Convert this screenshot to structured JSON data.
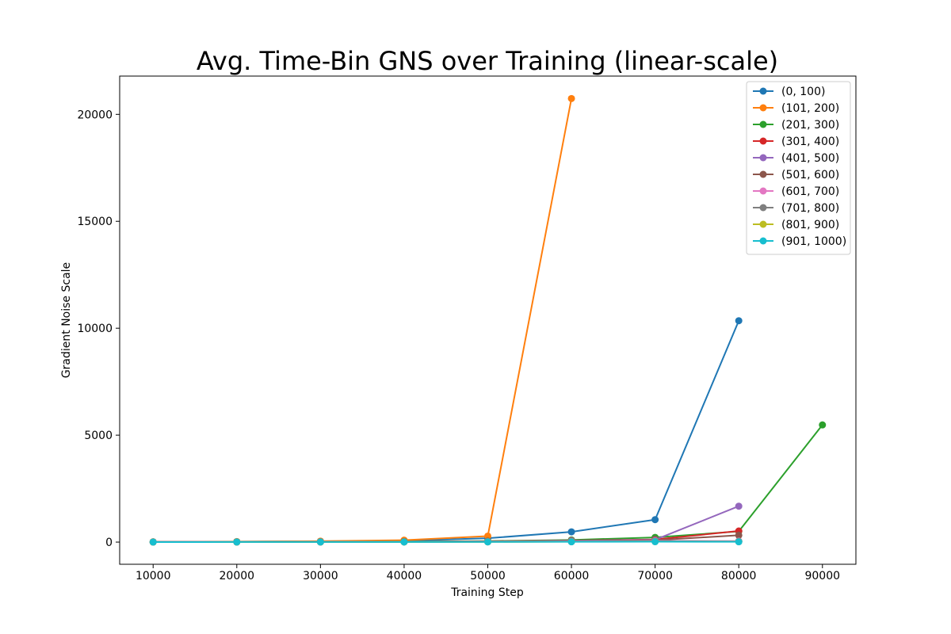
{
  "chart_data": {
    "type": "line",
    "title": "Avg. Time-Bin GNS over Training (linear-scale)",
    "xlabel": "Training Step",
    "ylabel": "Gradient Noise Scale",
    "xlim": [
      6000,
      94000
    ],
    "ylim": [
      -1036,
      21790
    ],
    "xticks": [
      10000,
      20000,
      30000,
      40000,
      50000,
      60000,
      70000,
      80000,
      90000
    ],
    "yticks": [
      0,
      5000,
      10000,
      15000,
      20000
    ],
    "grid": false,
    "legend_position": "top-right",
    "x": [
      10000,
      20000,
      30000,
      40000,
      50000,
      60000,
      70000,
      80000,
      90000
    ],
    "series": [
      {
        "name": "(0, 100)",
        "color": "#1f77b4",
        "values": [
          10,
          20,
          40,
          60,
          180,
          480,
          1050,
          10350,
          null
        ]
      },
      {
        "name": "(101, 200)",
        "color": "#ff7f0e",
        "values": [
          15,
          25,
          45,
          90,
          280,
          20740,
          null,
          null,
          null
        ]
      },
      {
        "name": "(201, 300)",
        "color": "#2ca02c",
        "values": [
          5,
          8,
          15,
          25,
          50,
          100,
          220,
          500,
          5480
        ]
      },
      {
        "name": "(301, 400)",
        "color": "#d62728",
        "values": [
          5,
          7,
          12,
          20,
          40,
          70,
          120,
          520,
          null
        ]
      },
      {
        "name": "(401, 500)",
        "color": "#9467bd",
        "values": [
          5,
          6,
          10,
          15,
          30,
          60,
          110,
          1680,
          null
        ]
      },
      {
        "name": "(501, 600)",
        "color": "#8c564b",
        "values": [
          4,
          5,
          8,
          12,
          25,
          45,
          90,
          320,
          null
        ]
      },
      {
        "name": "(601, 700)",
        "color": "#e377c2",
        "values": [
          4,
          5,
          7,
          10,
          20,
          35,
          60,
          50,
          null
        ]
      },
      {
        "name": "(701, 800)",
        "color": "#7f7f7f",
        "values": [
          4,
          5,
          6,
          9,
          15,
          25,
          40,
          30,
          null
        ]
      },
      {
        "name": "(801, 900)",
        "color": "#bcbd22",
        "values": [
          3,
          4,
          5,
          7,
          12,
          18,
          25,
          20,
          null
        ]
      },
      {
        "name": "(901, 1000)",
        "color": "#17becf",
        "values": [
          3,
          4,
          5,
          6,
          10,
          14,
          18,
          15,
          null
        ]
      }
    ]
  }
}
